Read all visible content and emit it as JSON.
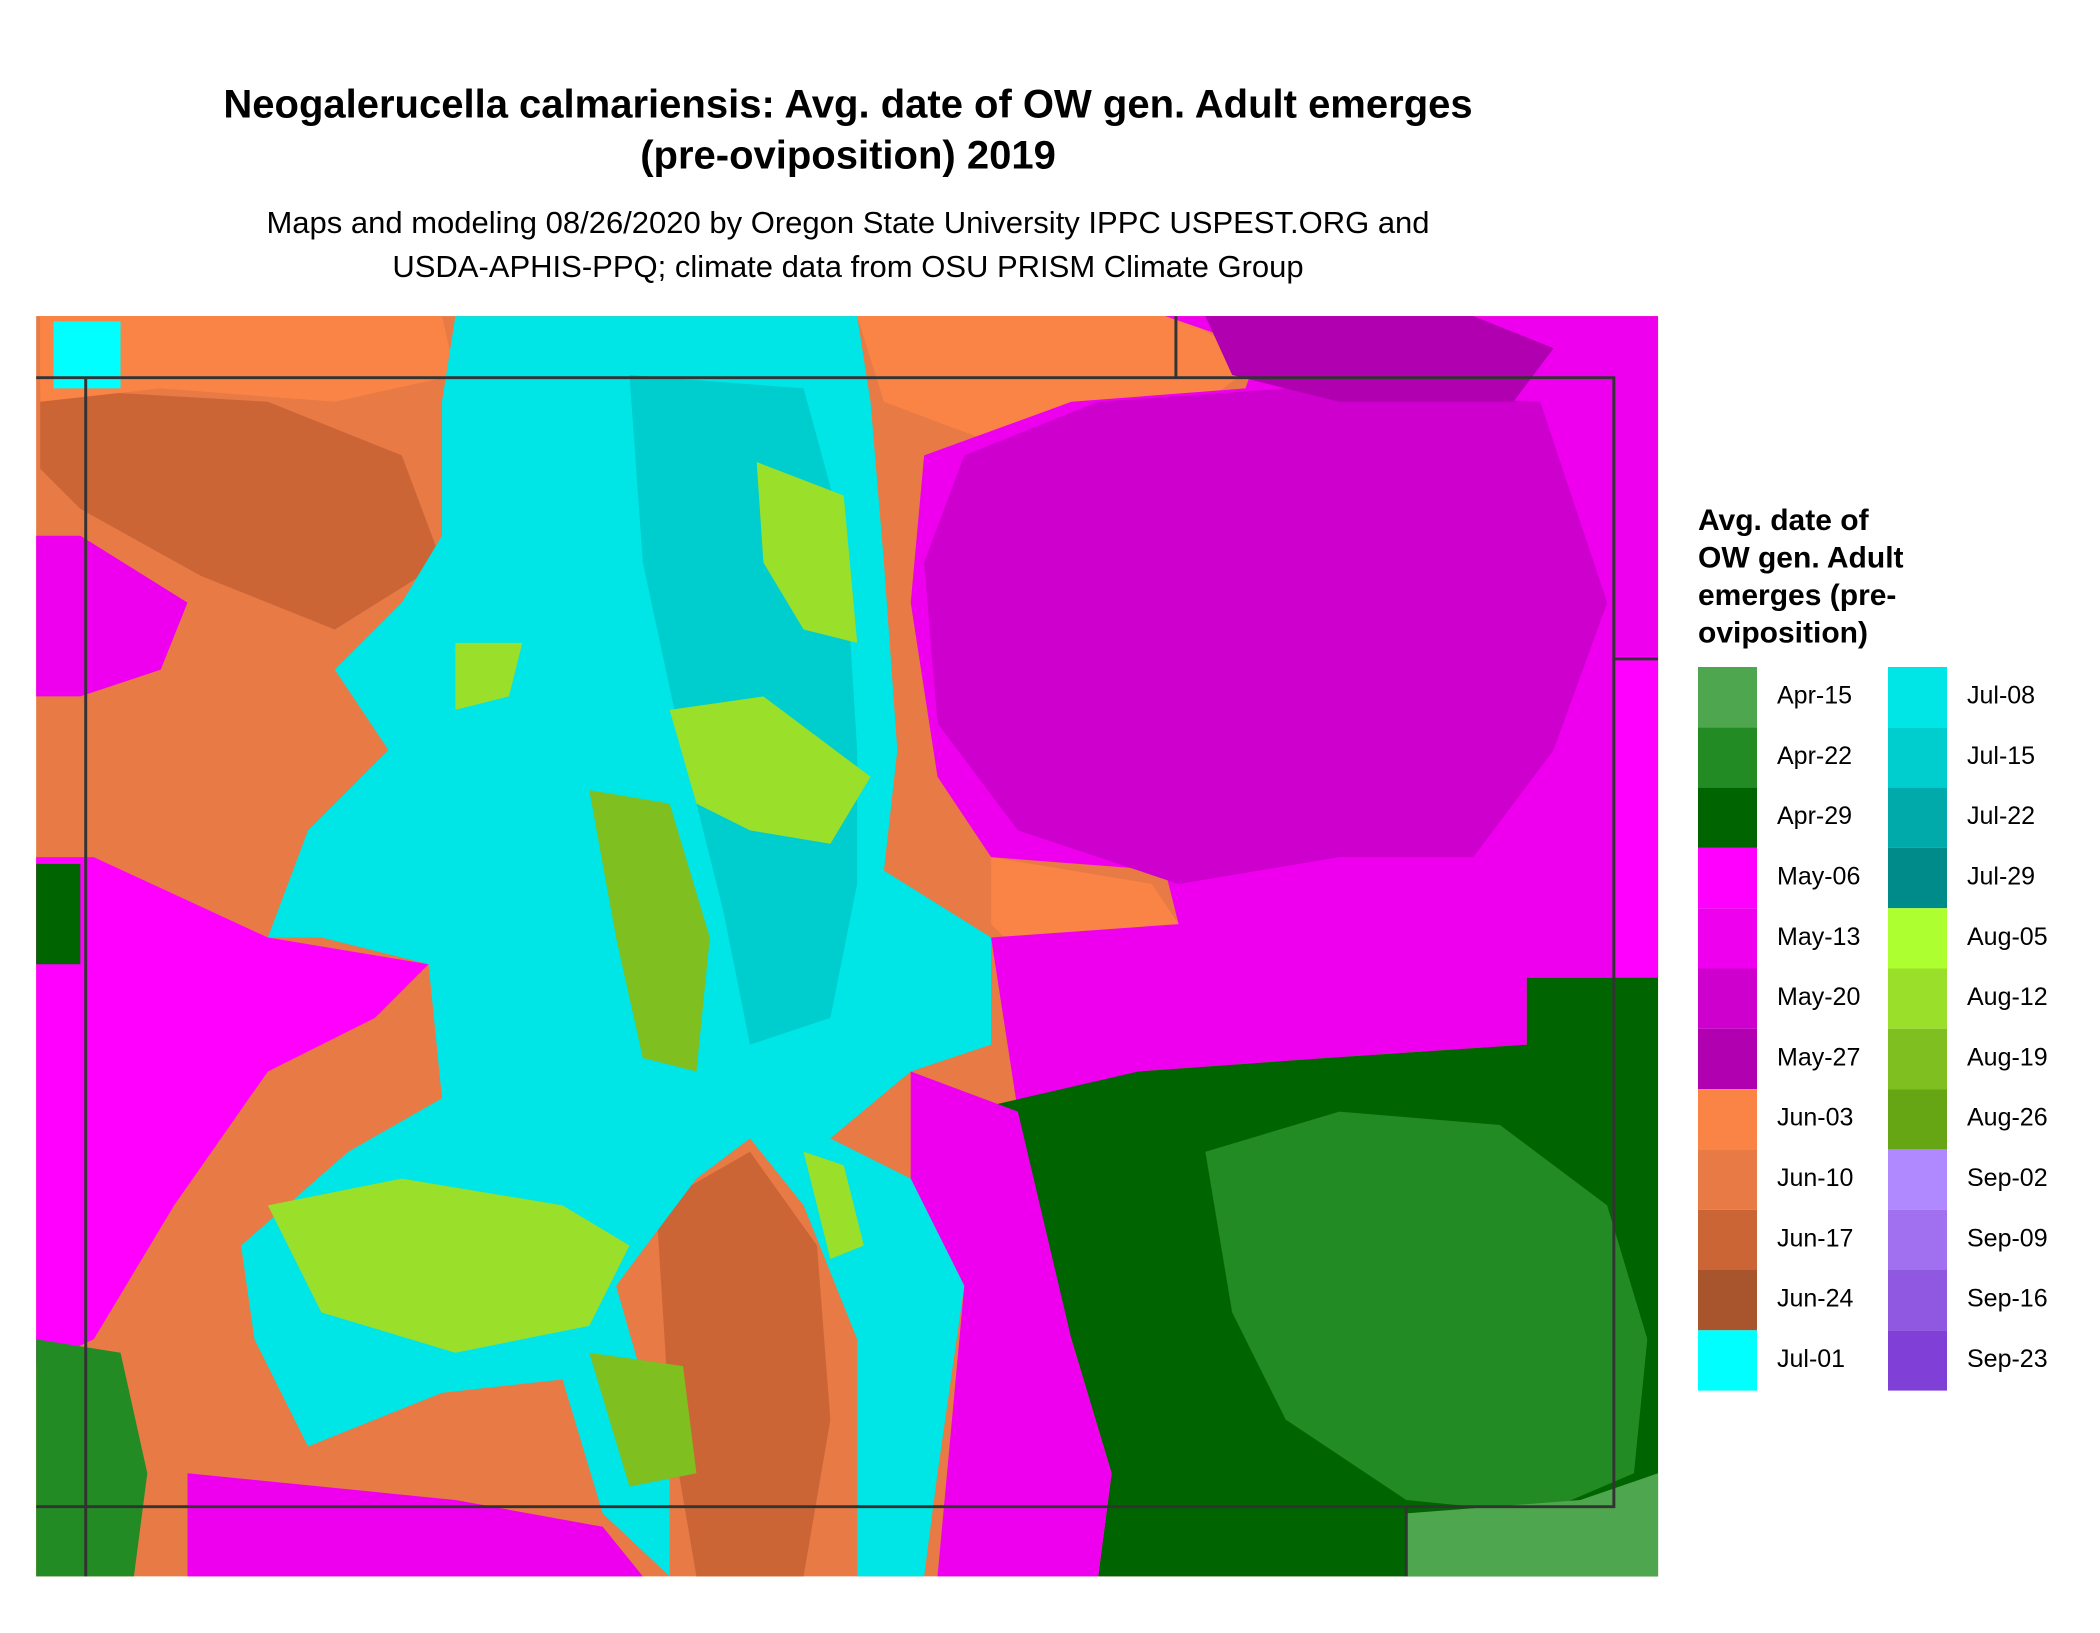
{
  "title": [
    "Neogalerucella calmariensis: Avg. date of OW gen. Adult emerges",
    "(pre-oviposition) 2019"
  ],
  "subtitle": [
    "Maps and modeling 08/26/2020 by Oregon State University IPPC USPEST.ORG and",
    "USDA-APHIS-PPQ; climate data from OSU PRISM Climate Group"
  ],
  "legend": {
    "title": [
      "Avg. date of",
      "OW gen. Adult",
      "emerges (pre-",
      "oviposition)"
    ],
    "items": [
      {
        "label": "Apr-15",
        "color": "#4ea64e"
      },
      {
        "label": "Apr-22",
        "color": "#238b23"
      },
      {
        "label": "Apr-29",
        "color": "#006400"
      },
      {
        "label": "May-06",
        "color": "#ff00ff"
      },
      {
        "label": "May-13",
        "color": "#ee00ee"
      },
      {
        "label": "May-20",
        "color": "#cd00cd"
      },
      {
        "label": "May-27",
        "color": "#b000b0"
      },
      {
        "label": "Jun-03",
        "color": "#fa8445"
      },
      {
        "label": "Jun-10",
        "color": "#e77a45"
      },
      {
        "label": "Jun-17",
        "color": "#cc6536"
      },
      {
        "label": "Jun-24",
        "color": "#a8552d"
      },
      {
        "label": "Jul-01",
        "color": "#00ffff"
      },
      {
        "label": "Jul-08",
        "color": "#00e5e5"
      },
      {
        "label": "Jul-15",
        "color": "#00cdcd"
      },
      {
        "label": "Jul-22",
        "color": "#00aaaa"
      },
      {
        "label": "Jul-29",
        "color": "#008b8b"
      },
      {
        "label": "Aug-05",
        "color": "#adff2f"
      },
      {
        "label": "Aug-12",
        "color": "#9ae02a"
      },
      {
        "label": "Aug-19",
        "color": "#7fbf1f"
      },
      {
        "label": "Aug-26",
        "color": "#66a615"
      },
      {
        "label": "Sep-02",
        "color": "#b088ff"
      },
      {
        "label": "Sep-09",
        "color": "#a070f0"
      },
      {
        "label": "Sep-16",
        "color": "#9058e0"
      },
      {
        "label": "Sep-23",
        "color": "#8040d8"
      }
    ]
  }
}
